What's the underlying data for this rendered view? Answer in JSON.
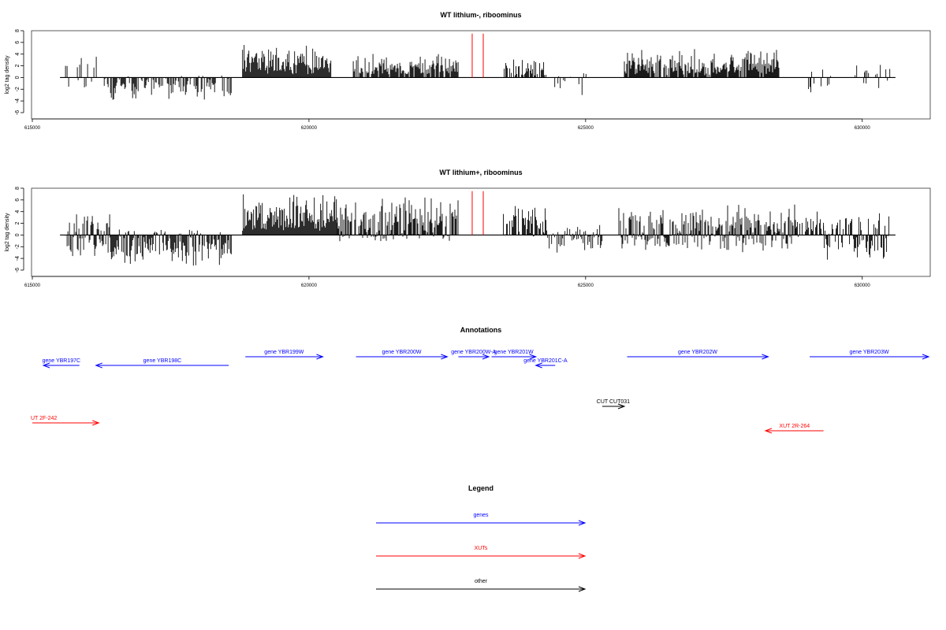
{
  "chart_data": [
    {
      "type": "bar",
      "title": "WT lithium-, riboominus",
      "ylabel": "log2 tag density",
      "xlim": [
        615000,
        631200
      ],
      "ylim": [
        -6,
        8
      ],
      "yticks": [
        -6,
        -4,
        -2,
        0,
        2,
        4,
        6,
        8
      ],
      "xticks": [
        615000,
        620000,
        625000,
        630000
      ],
      "xtick_labels": [
        "615000",
        "620000",
        "625000",
        "630000"
      ],
      "bar_color": "#000000",
      "markers": {
        "positions": [
          622950,
          623150
        ],
        "ymin": 0,
        "ymax": 7.5,
        "color": "#ff0000"
      },
      "regions": [
        {
          "start": 615600,
          "end": 616300,
          "min": -3,
          "max": 4.5,
          "density": 0.35
        },
        {
          "start": 616300,
          "end": 618600,
          "min": -4.2,
          "max": 0.5,
          "density": 0.6
        },
        {
          "start": 618800,
          "end": 620400,
          "min": 0,
          "max": 5.8,
          "density": 1.0
        },
        {
          "start": 620800,
          "end": 622700,
          "min": 0,
          "max": 4.5,
          "density": 0.75
        },
        {
          "start": 623500,
          "end": 624300,
          "min": 0,
          "max": 3.5,
          "density": 0.6
        },
        {
          "start": 624300,
          "end": 624800,
          "min": -3,
          "max": 0.5,
          "density": 0.4
        },
        {
          "start": 624850,
          "end": 625100,
          "min": -3.5,
          "max": 2.5,
          "density": 0.2
        },
        {
          "start": 625700,
          "end": 628500,
          "min": 0,
          "max": 5,
          "density": 0.85
        },
        {
          "start": 629000,
          "end": 629500,
          "min": -3.5,
          "max": 2.5,
          "density": 0.2
        },
        {
          "start": 629800,
          "end": 630500,
          "min": -3,
          "max": 4,
          "density": 0.35
        }
      ]
    },
    {
      "type": "bar",
      "title": "WT lithium+, riboominus",
      "ylabel": "log2 tag density",
      "xlim": [
        615000,
        631200
      ],
      "ylim": [
        -6,
        8
      ],
      "yticks": [
        -6,
        -4,
        -2,
        0,
        2,
        4,
        6,
        8
      ],
      "xticks": [
        615000,
        620000,
        625000,
        630000
      ],
      "xtick_labels": [
        "615000",
        "620000",
        "625000",
        "630000"
      ],
      "bar_color": "#000000",
      "markers": {
        "positions": [
          622950,
          623150
        ],
        "ymin": 0,
        "ymax": 7.5,
        "color": "#ff0000"
      },
      "regions": [
        {
          "start": 615600,
          "end": 616400,
          "min": -4.5,
          "max": 4.5,
          "density": 0.9
        },
        {
          "start": 616400,
          "end": 618600,
          "min": -5.8,
          "max": 1,
          "density": 0.9
        },
        {
          "start": 618800,
          "end": 620500,
          "min": 0,
          "max": 7.5,
          "density": 1.0
        },
        {
          "start": 620500,
          "end": 622700,
          "min": -1.5,
          "max": 7.5,
          "density": 0.9
        },
        {
          "start": 623500,
          "end": 624300,
          "min": -1,
          "max": 5.5,
          "density": 0.8
        },
        {
          "start": 624300,
          "end": 625300,
          "min": -3.5,
          "max": 2,
          "density": 0.7
        },
        {
          "start": 625600,
          "end": 628800,
          "min": -3.5,
          "max": 5.5,
          "density": 0.95
        },
        {
          "start": 628800,
          "end": 629300,
          "min": -1,
          "max": 4.5,
          "density": 0.6
        },
        {
          "start": 629300,
          "end": 630500,
          "min": -4.5,
          "max": 4.5,
          "density": 0.9
        }
      ]
    }
  ],
  "annotations": {
    "title": "Annotations",
    "features": [
      {
        "label": "gene YBR197C",
        "start": 615200,
        "end": 615850,
        "strand": "-",
        "color": "#0000ff"
      },
      {
        "label": "gene YBR198C",
        "start": 616150,
        "end": 618550,
        "strand": "-",
        "color": "#0000ff"
      },
      {
        "label": "gene YBR199W",
        "start": 618850,
        "end": 620250,
        "strand": "+",
        "color": "#0000ff"
      },
      {
        "label": "gene YBR200W",
        "start": 620850,
        "end": 622500,
        "strand": "+",
        "color": "#0000ff"
      },
      {
        "label": "gene YBR200W-A",
        "start": 622700,
        "end": 623250,
        "strand": "+",
        "color": "#0000ff"
      },
      {
        "label": "gene YBR201W",
        "start": 623300,
        "end": 624100,
        "strand": "+",
        "color": "#0000ff"
      },
      {
        "label": "gene YBR201C-A",
        "start": 624100,
        "end": 624450,
        "strand": "-",
        "color": "#0000ff"
      },
      {
        "label": "gene YBR202W",
        "start": 625750,
        "end": 628300,
        "strand": "+",
        "color": "#0000ff"
      },
      {
        "label": "gene YBR203W",
        "start": 629050,
        "end": 631200,
        "strand": "+",
        "color": "#0000ff"
      },
      {
        "label": "CUT CUT031",
        "start": 625300,
        "end": 625700,
        "strand": "+",
        "color": "#000000"
      },
      {
        "label": "UT 2F-242",
        "start": 615000,
        "end": 616200,
        "strand": "+",
        "color": "#ff0000"
      },
      {
        "label": "XUT 2R-264",
        "start": 628250,
        "end": 629300,
        "strand": "-",
        "color": "#ff0000"
      }
    ]
  },
  "legend": {
    "title": "Legend",
    "items": [
      {
        "label": "genes",
        "color": "#0000ff"
      },
      {
        "label": "XUTs",
        "color": "#ff0000"
      },
      {
        "label": "other",
        "color": "#000000"
      }
    ]
  }
}
